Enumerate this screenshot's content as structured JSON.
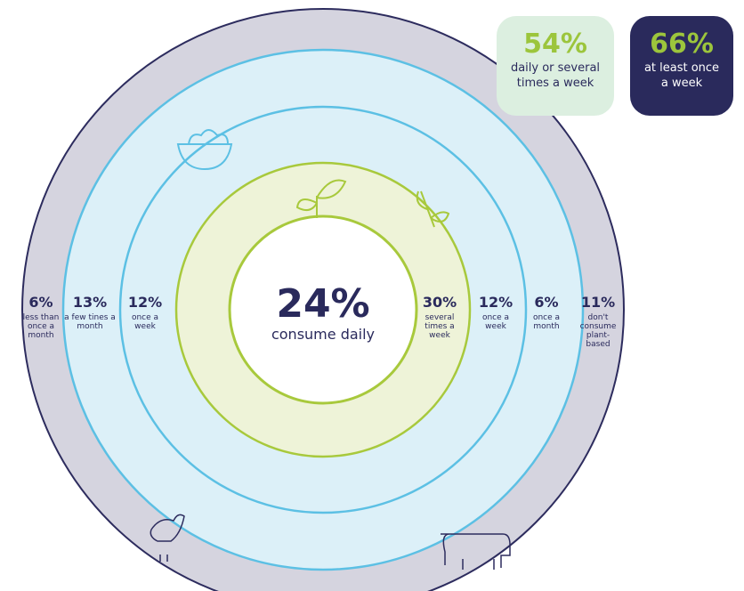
{
  "center": {
    "value": "24%",
    "label": "consume daily"
  },
  "rings_left": [
    {
      "value": "6%",
      "label": "less than once a month"
    },
    {
      "value": "13%",
      "label": "a few tines a month"
    },
    {
      "value": "12%",
      "label": "once a week"
    }
  ],
  "rings_right": [
    {
      "value": "30%",
      "label": "several times a week"
    },
    {
      "value": "12%",
      "label": "once a week"
    },
    {
      "value": "6%",
      "label": "once a month"
    },
    {
      "value": "11%",
      "label": "don't consume plant-based"
    }
  ],
  "callouts": [
    {
      "value": "54%",
      "label": "daily or several times a week"
    },
    {
      "value": "66%",
      "label": "at least once a week"
    }
  ]
}
